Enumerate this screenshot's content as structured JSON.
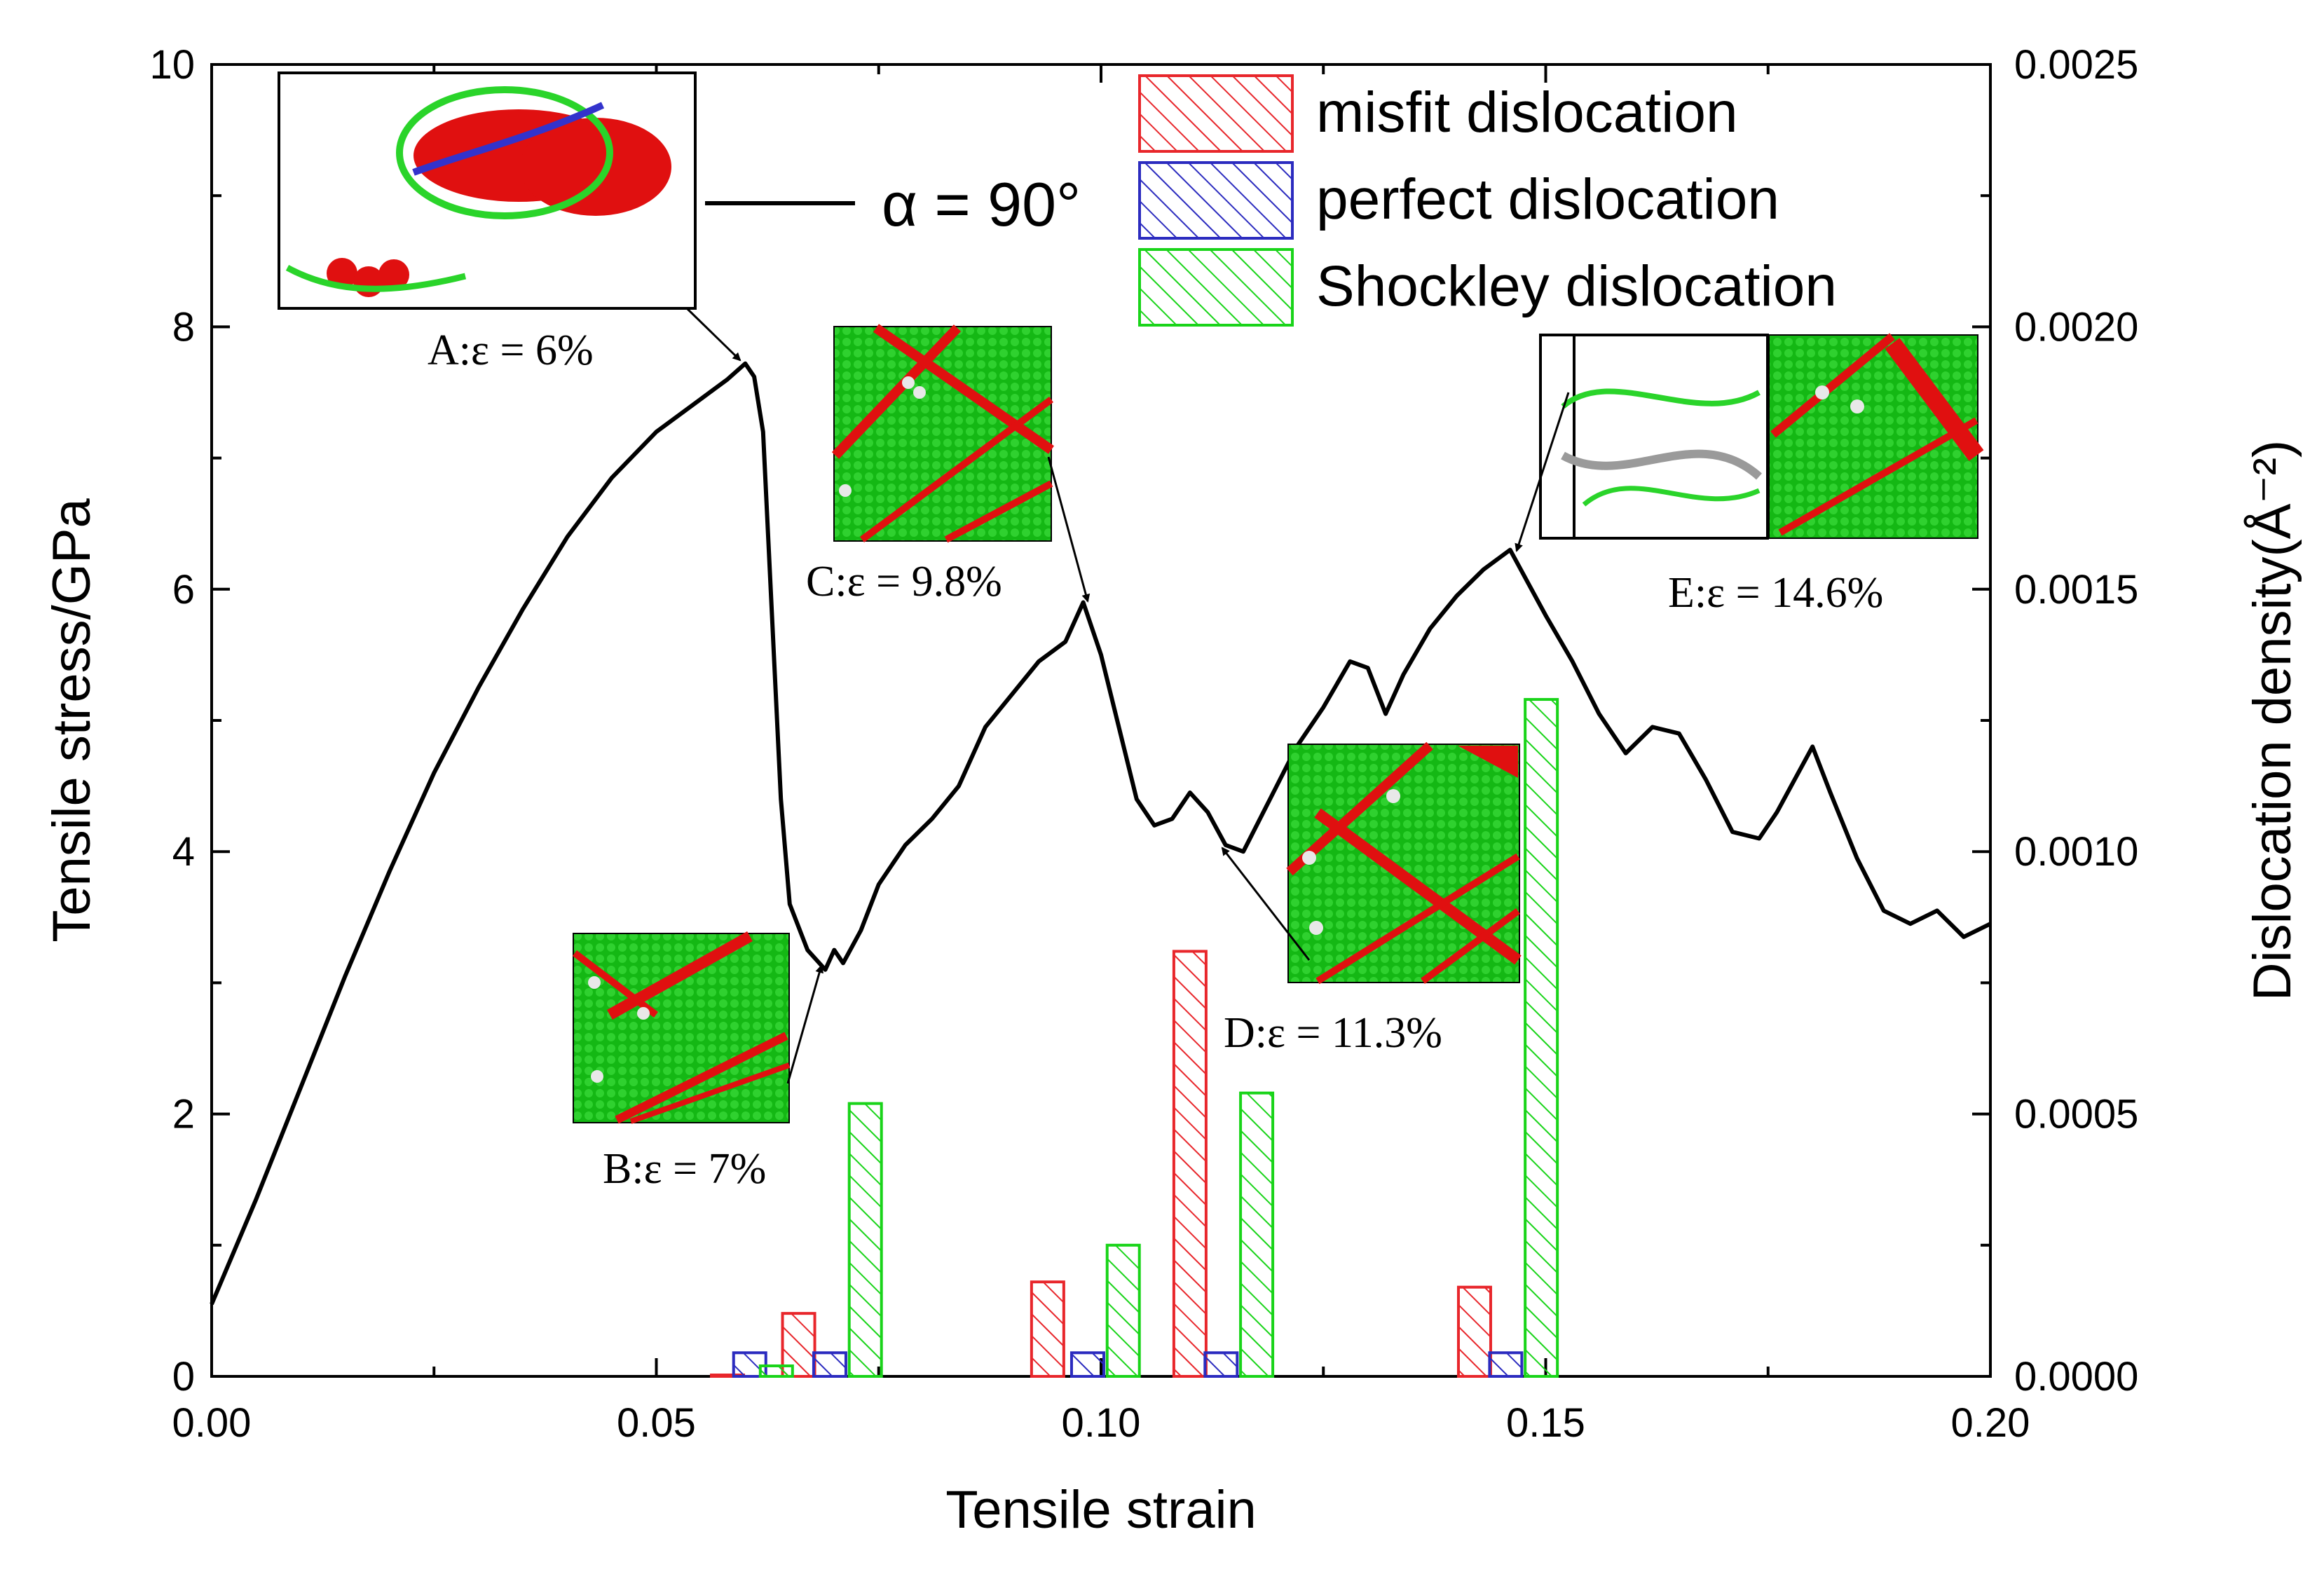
{
  "chart_data": {
    "type": "line+bar",
    "xlabel": "Tensile strain",
    "ylabel_left": "Tensile stress/GPa",
    "ylabel_right": "Dislocation density(Å⁻²)",
    "xlim": [
      0,
      0.2
    ],
    "ylim_left": [
      0,
      10
    ],
    "ylim_right": [
      0,
      0.0025
    ],
    "x_ticks": [
      "0.00",
      "0.05",
      "0.10",
      "0.15",
      "0.20"
    ],
    "y_left_ticks": [
      "0",
      "2",
      "4",
      "6",
      "8",
      "10"
    ],
    "y_right_ticks": [
      "0.0000",
      "0.0005",
      "0.0010",
      "0.0015",
      "0.0020",
      "0.0025"
    ],
    "line_series": {
      "name": "α = 90°",
      "label": "α = 90°",
      "color": "#000000",
      "points": [
        [
          0.0,
          0.55
        ],
        [
          0.005,
          1.35
        ],
        [
          0.01,
          2.2
        ],
        [
          0.015,
          3.05
        ],
        [
          0.02,
          3.85
        ],
        [
          0.025,
          4.6
        ],
        [
          0.03,
          5.25
        ],
        [
          0.035,
          5.85
        ],
        [
          0.04,
          6.4
        ],
        [
          0.045,
          6.85
        ],
        [
          0.05,
          7.2
        ],
        [
          0.055,
          7.45
        ],
        [
          0.058,
          7.6
        ],
        [
          0.06,
          7.72
        ],
        [
          0.061,
          7.62
        ],
        [
          0.062,
          7.2
        ],
        [
          0.063,
          5.8
        ],
        [
          0.064,
          4.4
        ],
        [
          0.065,
          3.6
        ],
        [
          0.067,
          3.25
        ],
        [
          0.069,
          3.1
        ],
        [
          0.07,
          3.25
        ],
        [
          0.071,
          3.15
        ],
        [
          0.073,
          3.4
        ],
        [
          0.075,
          3.75
        ],
        [
          0.078,
          4.05
        ],
        [
          0.081,
          4.25
        ],
        [
          0.084,
          4.5
        ],
        [
          0.087,
          4.95
        ],
        [
          0.09,
          5.2
        ],
        [
          0.093,
          5.45
        ],
        [
          0.096,
          5.6
        ],
        [
          0.098,
          5.9
        ],
        [
          0.1,
          5.5
        ],
        [
          0.102,
          4.95
        ],
        [
          0.104,
          4.4
        ],
        [
          0.106,
          4.2
        ],
        [
          0.108,
          4.25
        ],
        [
          0.11,
          4.45
        ],
        [
          0.112,
          4.3
        ],
        [
          0.114,
          4.05
        ],
        [
          0.116,
          4.0
        ],
        [
          0.119,
          4.4
        ],
        [
          0.122,
          4.8
        ],
        [
          0.125,
          5.1
        ],
        [
          0.128,
          5.45
        ],
        [
          0.13,
          5.4
        ],
        [
          0.132,
          5.05
        ],
        [
          0.134,
          5.35
        ],
        [
          0.137,
          5.7
        ],
        [
          0.14,
          5.95
        ],
        [
          0.143,
          6.15
        ],
        [
          0.146,
          6.3
        ],
        [
          0.148,
          6.05
        ],
        [
          0.15,
          5.8
        ],
        [
          0.153,
          5.45
        ],
        [
          0.156,
          5.05
        ],
        [
          0.159,
          4.75
        ],
        [
          0.162,
          4.95
        ],
        [
          0.165,
          4.9
        ],
        [
          0.168,
          4.55
        ],
        [
          0.171,
          4.15
        ],
        [
          0.174,
          4.1
        ],
        [
          0.176,
          4.3
        ],
        [
          0.178,
          4.55
        ],
        [
          0.18,
          4.8
        ],
        [
          0.182,
          4.45
        ],
        [
          0.185,
          3.95
        ],
        [
          0.188,
          3.55
        ],
        [
          0.191,
          3.45
        ],
        [
          0.194,
          3.55
        ],
        [
          0.197,
          3.35
        ],
        [
          0.2,
          3.45
        ]
      ]
    },
    "bar_series": [
      {
        "name": "misfit dislocation",
        "color": "#e8262b",
        "values": [
          [
            0.058,
            0.0
          ],
          [
            0.066,
            0.00012
          ],
          [
            0.094,
            0.00018
          ],
          [
            0.11,
            0.00081
          ],
          [
            0.142,
            0.00017
          ]
        ]
      },
      {
        "name": "perfect dislocation",
        "color": "#2b2bbf",
        "values": [
          [
            0.0605,
            4.5e-05
          ],
          [
            0.0695,
            4.5e-05
          ],
          [
            0.0985,
            4.5e-05
          ],
          [
            0.1135,
            4.5e-05
          ],
          [
            0.1455,
            4.5e-05
          ]
        ]
      },
      {
        "name": "Shockley dislocation",
        "color": "#19d419",
        "values": [
          [
            0.0635,
            2e-05
          ],
          [
            0.0735,
            0.00052
          ],
          [
            0.1025,
            0.00025
          ],
          [
            0.1175,
            0.00054
          ],
          [
            0.1495,
            0.00129
          ]
        ]
      }
    ],
    "annotations": [
      {
        "id": "A",
        "label": "A:ε = 6%",
        "x": 0.06,
        "y": 7.72
      },
      {
        "id": "B",
        "label": "B:ε = 7%",
        "x": 0.069,
        "y": 3.2
      },
      {
        "id": "C",
        "label": "C:ε = 9.8%",
        "x": 0.098,
        "y": 5.9
      },
      {
        "id": "D",
        "label": "D:ε = 11.3%",
        "x": 0.113,
        "y": 4.05
      },
      {
        "id": "E",
        "label": "E:ε = 14.6%",
        "x": 0.146,
        "y": 6.3
      }
    ],
    "legend": {
      "position": "top-right"
    }
  }
}
